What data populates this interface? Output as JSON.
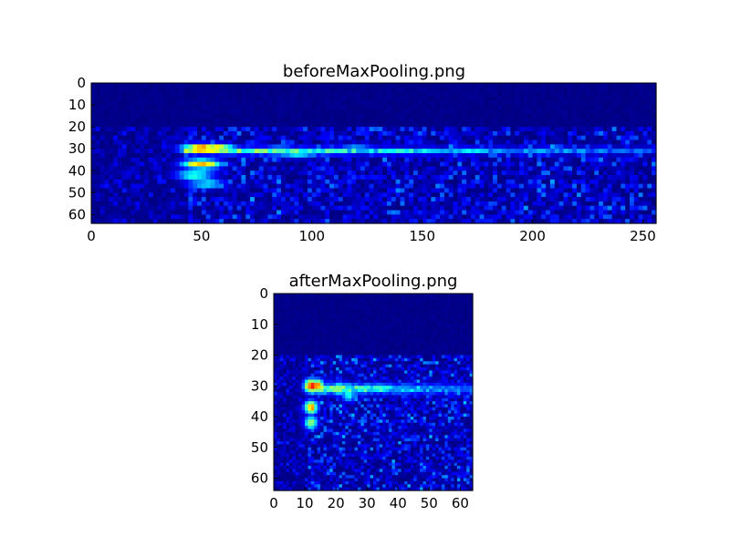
{
  "chart_data": [
    {
      "type": "heatmap",
      "title": "beforeMaxPooling.png",
      "colormap": "jet",
      "x_ticks": [
        "0",
        "50",
        "100",
        "150",
        "200",
        "250"
      ],
      "y_ticks": [
        "0",
        "10",
        "20",
        "30",
        "40",
        "50",
        "60"
      ],
      "xlim": [
        0,
        256
      ],
      "ylim": [
        64,
        0
      ],
      "background_value": 0.0,
      "noise_band_rows": [
        20,
        64
      ],
      "noise_level": 0.18,
      "onset_column": 43,
      "hotspots": [
        {
          "x": 50,
          "y": 30,
          "value": 0.9
        },
        {
          "x": 56,
          "y": 30,
          "value": 0.8
        },
        {
          "x": 50,
          "y": 37,
          "value": 0.8
        },
        {
          "x": 47,
          "y": 42,
          "value": 0.5
        },
        {
          "x": 52,
          "y": 46,
          "value": 0.42
        },
        {
          "x": 85,
          "y": 31,
          "value": 0.5
        },
        {
          "x": 94,
          "y": 32,
          "value": 0.45
        },
        {
          "x": 120,
          "y": 30,
          "value": 0.35
        }
      ],
      "ridge": {
        "row": 31,
        "from_x": 43,
        "to_x": 256,
        "value_start": 0.55,
        "value_end": 0.22
      }
    },
    {
      "type": "heatmap",
      "title": "afterMaxPooling.png",
      "colormap": "jet",
      "x_ticks": [
        "0",
        "10",
        "20",
        "30",
        "40",
        "50",
        "60"
      ],
      "y_ticks": [
        "0",
        "10",
        "20",
        "30",
        "40",
        "50",
        "60"
      ],
      "xlim": [
        0,
        64
      ],
      "ylim": [
        64,
        0
      ],
      "background_value": 0.0,
      "noise_band_rows": [
        20,
        64
      ],
      "noise_level": 0.2,
      "onset_column": 11,
      "hotspots": [
        {
          "x": 12,
          "y": 30,
          "value": 0.95
        },
        {
          "x": 14,
          "y": 30,
          "value": 0.85
        },
        {
          "x": 12,
          "y": 37,
          "value": 0.8
        },
        {
          "x": 12,
          "y": 42,
          "value": 0.6
        },
        {
          "x": 21,
          "y": 31,
          "value": 0.58
        },
        {
          "x": 24,
          "y": 33,
          "value": 0.45
        }
      ],
      "ridge": {
        "row": 31,
        "from_x": 11,
        "to_x": 64,
        "value_start": 0.6,
        "value_end": 0.25
      }
    }
  ]
}
